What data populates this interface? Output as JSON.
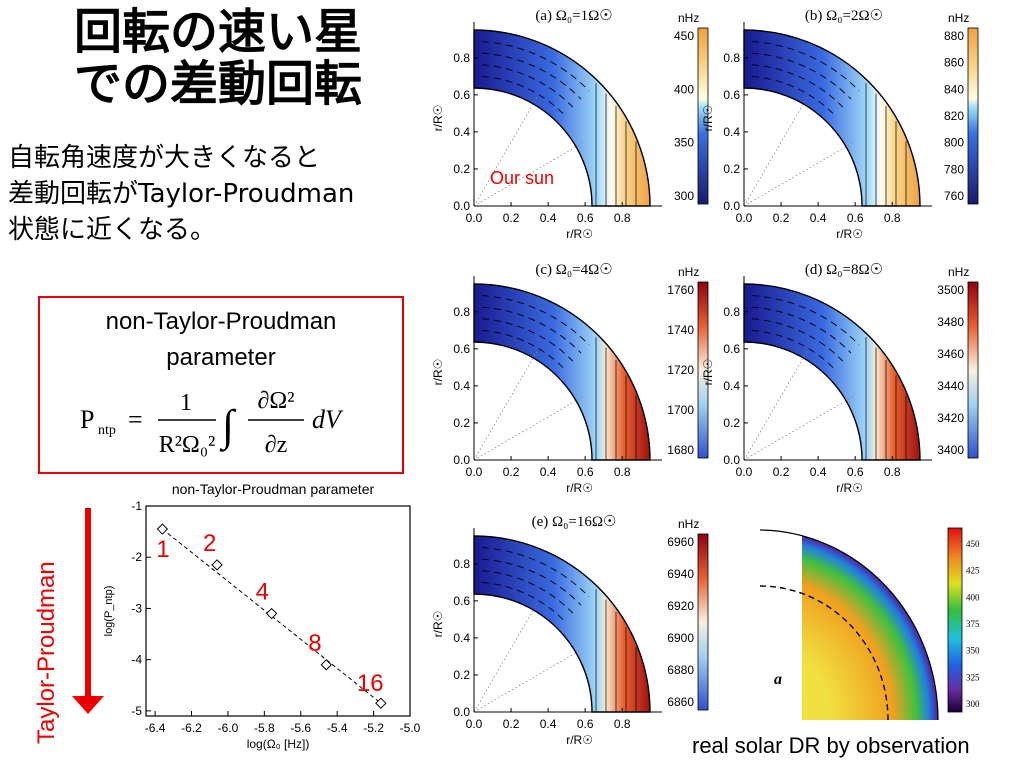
{
  "title_line1": "回転の速い星",
  "title_line2": "での差動回転",
  "subtitle": [
    "自転角速度が大きくなると",
    "差動回転がTaylor-Proudman",
    "状態に近くなる。"
  ],
  "box": {
    "line1": "non-Taylor-Proudman",
    "line2": "parameter",
    "formula_lhs": "P",
    "formula_lhs_sub": "ntp",
    "formula_num": "1",
    "formula_den": "R²Ω₀²",
    "formula_int_num": "∂Ω²",
    "formula_int_den": "∂z",
    "formula_dv": "dV"
  },
  "arrow_label": "Taylor-Proudman",
  "chart_data": {
    "type": "scatter",
    "title": "non-Taylor-Proudman parameter",
    "xlabel": "log(Ω₀ [Hz])",
    "ylabel": "log(P_ntp)",
    "xlim": [
      -6.45,
      -5.0
    ],
    "ylim": [
      -5.1,
      -1.0
    ],
    "xticks": [
      "-6.4",
      "-6.2",
      "-6.0",
      "-5.8",
      "-5.6",
      "-5.4",
      "-5.2",
      "-5.0"
    ],
    "yticks": [
      "-1",
      "-2",
      "-3",
      "-4",
      "-5"
    ],
    "points": [
      {
        "x": -6.36,
        "y": -1.45,
        "label": "1"
      },
      {
        "x": -6.06,
        "y": -2.15,
        "label": "2"
      },
      {
        "x": -5.76,
        "y": -3.1,
        "label": "4"
      },
      {
        "x": -5.46,
        "y": -4.1,
        "label": "8"
      },
      {
        "x": -5.16,
        "y": -4.85,
        "label": "16"
      }
    ],
    "fit_line": "dashed"
  },
  "panels": [
    {
      "label": "(a) Ω₀=1Ω☉",
      "unit": "nHz",
      "ticks": [
        "450",
        "400",
        "350",
        "300"
      ],
      "annotation": "Our sun",
      "colormap": "cool"
    },
    {
      "label": "(b) Ω₀=2Ω☉",
      "unit": "nHz",
      "ticks": [
        "880",
        "860",
        "840",
        "820",
        "800",
        "780",
        "760"
      ],
      "colormap": "cool"
    },
    {
      "label": "(c) Ω₀=4Ω☉",
      "unit": "nHz",
      "ticks": [
        "1760",
        "1740",
        "1720",
        "1700",
        "1680"
      ],
      "colormap": "warm"
    },
    {
      "label": "(d) Ω₀=8Ω☉",
      "unit": "nHz",
      "ticks": [
        "3500",
        "3480",
        "3460",
        "3440",
        "3420",
        "3400"
      ],
      "colormap": "warm"
    },
    {
      "label": "(e) Ω₀=16Ω☉",
      "unit": "nHz",
      "ticks": [
        "6960",
        "6940",
        "6920",
        "6900",
        "6880",
        "6860"
      ],
      "colormap": "warm"
    }
  ],
  "panel_axis": {
    "ylabel": "r/R☉",
    "xlabel": "r/R☉",
    "yticks": [
      "0.8",
      "0.6",
      "0.4",
      "0.2",
      "0.0"
    ],
    "xticks": [
      "0.0",
      "0.2",
      "0.4",
      "0.6",
      "0.8"
    ]
  },
  "obs": {
    "letter": "a",
    "ticks": [
      "450",
      "425",
      "400",
      "375",
      "350",
      "325",
      "300"
    ],
    "caption": "real solar DR by observation"
  },
  "colors": {
    "accent_red": "#ee0000",
    "box_border": "#e00000"
  }
}
